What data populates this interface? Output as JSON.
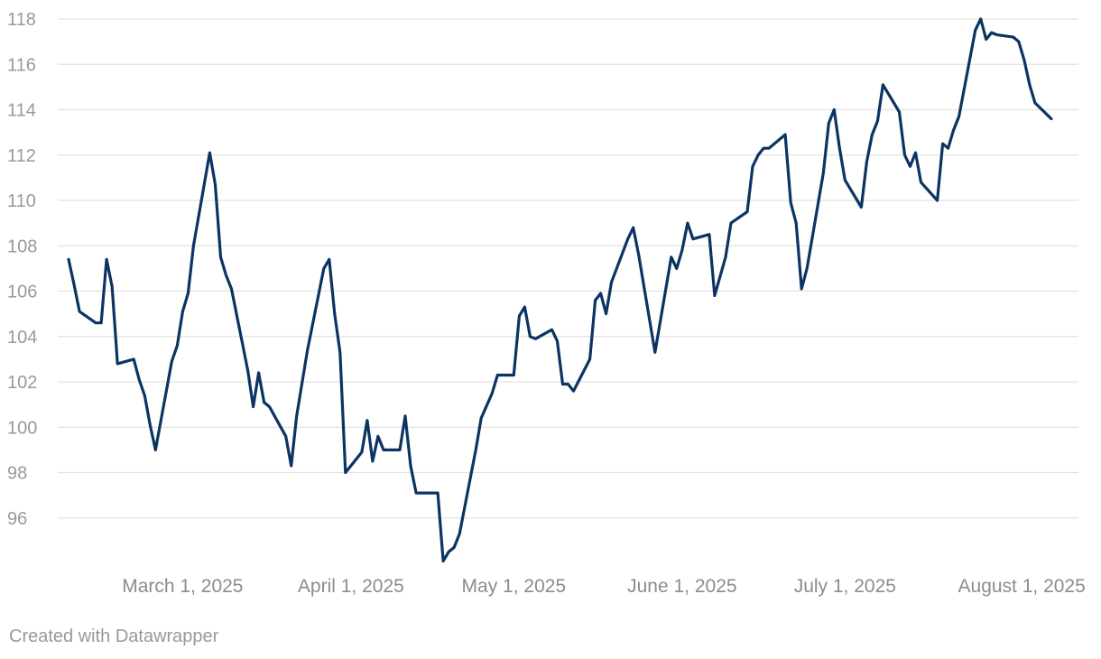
{
  "chart_data": {
    "type": "line",
    "title": "",
    "xlabel": "",
    "ylabel": "",
    "ylim": [
      94,
      118
    ],
    "yticks": [
      96,
      98,
      100,
      102,
      104,
      106,
      108,
      110,
      112,
      114,
      116,
      118
    ],
    "xlim": [
      "2025-02-06",
      "2025-08-13"
    ],
    "xticks": [
      {
        "date": "2025-03-01",
        "label": "March 1, 2025"
      },
      {
        "date": "2025-04-01",
        "label": "April 1, 2025"
      },
      {
        "date": "2025-05-01",
        "label": "May 1, 2025"
      },
      {
        "date": "2025-06-01",
        "label": "June 1, 2025"
      },
      {
        "date": "2025-07-01",
        "label": "July 1, 2025"
      },
      {
        "date": "2025-08-01",
        "label": "August 1, 2025"
      }
    ],
    "grid": true,
    "series": [
      {
        "color": "#0b3463",
        "points": [
          [
            "2025-02-08",
            107.4
          ],
          [
            "2025-02-09",
            106.3
          ],
          [
            "2025-02-10",
            105.1
          ],
          [
            "2025-02-13",
            104.6
          ],
          [
            "2025-02-14",
            104.6
          ],
          [
            "2025-02-15",
            107.4
          ],
          [
            "2025-02-16",
            106.2
          ],
          [
            "2025-02-17",
            102.8
          ],
          [
            "2025-02-20",
            103.0
          ],
          [
            "2025-02-21",
            102.1
          ],
          [
            "2025-02-22",
            101.4
          ],
          [
            "2025-02-23",
            100.1
          ],
          [
            "2025-02-24",
            99.0
          ],
          [
            "2025-02-27",
            102.9
          ],
          [
            "2025-02-28",
            103.6
          ],
          [
            "2025-03-01",
            105.1
          ],
          [
            "2025-03-02",
            105.9
          ],
          [
            "2025-03-03",
            108.0
          ],
          [
            "2025-03-06",
            112.1
          ],
          [
            "2025-03-07",
            110.7
          ],
          [
            "2025-03-08",
            107.5
          ],
          [
            "2025-03-09",
            106.7
          ],
          [
            "2025-03-10",
            106.1
          ],
          [
            "2025-03-13",
            102.5
          ],
          [
            "2025-03-14",
            100.9
          ],
          [
            "2025-03-15",
            102.4
          ],
          [
            "2025-03-16",
            101.1
          ],
          [
            "2025-03-17",
            100.9
          ],
          [
            "2025-03-20",
            99.6
          ],
          [
            "2025-03-21",
            98.3
          ],
          [
            "2025-03-22",
            100.5
          ],
          [
            "2025-03-24",
            103.4
          ],
          [
            "2025-03-27",
            107.0
          ],
          [
            "2025-03-28",
            107.4
          ],
          [
            "2025-03-29",
            105.0
          ],
          [
            "2025-03-30",
            103.3
          ],
          [
            "2025-03-31",
            98.0
          ],
          [
            "2025-04-03",
            98.9
          ],
          [
            "2025-04-04",
            100.3
          ],
          [
            "2025-04-05",
            98.5
          ],
          [
            "2025-04-06",
            99.6
          ],
          [
            "2025-04-07",
            99.0
          ],
          [
            "2025-04-10",
            99.0
          ],
          [
            "2025-04-11",
            100.5
          ],
          [
            "2025-04-12",
            98.3
          ],
          [
            "2025-04-13",
            97.1
          ],
          [
            "2025-04-17",
            97.1
          ],
          [
            "2025-04-18",
            94.1
          ],
          [
            "2025-04-19",
            94.5
          ],
          [
            "2025-04-20",
            94.7
          ],
          [
            "2025-04-21",
            95.3
          ],
          [
            "2025-04-24",
            99.0
          ],
          [
            "2025-04-25",
            100.4
          ],
          [
            "2025-04-27",
            101.5
          ],
          [
            "2025-04-28",
            102.3
          ],
          [
            "2025-05-01",
            102.3
          ],
          [
            "2025-05-02",
            104.9
          ],
          [
            "2025-05-03",
            105.3
          ],
          [
            "2025-05-04",
            104.0
          ],
          [
            "2025-05-05",
            103.9
          ],
          [
            "2025-05-08",
            104.3
          ],
          [
            "2025-05-09",
            103.8
          ],
          [
            "2025-05-10",
            101.9
          ],
          [
            "2025-05-11",
            101.9
          ],
          [
            "2025-05-12",
            101.6
          ],
          [
            "2025-05-15",
            103.0
          ],
          [
            "2025-05-16",
            105.6
          ],
          [
            "2025-05-17",
            105.9
          ],
          [
            "2025-05-18",
            105.0
          ],
          [
            "2025-05-19",
            106.4
          ],
          [
            "2025-05-22",
            108.3
          ],
          [
            "2025-05-23",
            108.8
          ],
          [
            "2025-05-24",
            107.6
          ],
          [
            "2025-05-27",
            103.3
          ],
          [
            "2025-05-30",
            107.5
          ],
          [
            "2025-05-31",
            107.0
          ],
          [
            "2025-06-01",
            107.8
          ],
          [
            "2025-06-02",
            109.0
          ],
          [
            "2025-06-03",
            108.3
          ],
          [
            "2025-06-06",
            108.5
          ],
          [
            "2025-06-07",
            105.8
          ],
          [
            "2025-06-09",
            107.5
          ],
          [
            "2025-06-10",
            109.0
          ],
          [
            "2025-06-13",
            109.5
          ],
          [
            "2025-06-14",
            111.5
          ],
          [
            "2025-06-15",
            112.0
          ],
          [
            "2025-06-16",
            112.3
          ],
          [
            "2025-06-17",
            112.3
          ],
          [
            "2025-06-20",
            112.9
          ],
          [
            "2025-06-21",
            109.9
          ],
          [
            "2025-06-22",
            109.0
          ],
          [
            "2025-06-23",
            106.1
          ],
          [
            "2025-06-24",
            107.0
          ],
          [
            "2025-06-27",
            111.2
          ],
          [
            "2025-06-28",
            113.4
          ],
          [
            "2025-06-29",
            114.0
          ],
          [
            "2025-06-30",
            112.3
          ],
          [
            "2025-07-01",
            110.9
          ],
          [
            "2025-07-04",
            109.7
          ],
          [
            "2025-07-05",
            111.7
          ],
          [
            "2025-07-06",
            112.9
          ],
          [
            "2025-07-07",
            113.5
          ],
          [
            "2025-07-08",
            115.1
          ],
          [
            "2025-07-11",
            113.9
          ],
          [
            "2025-07-12",
            112.0
          ],
          [
            "2025-07-13",
            111.5
          ],
          [
            "2025-07-14",
            112.1
          ],
          [
            "2025-07-15",
            110.8
          ],
          [
            "2025-07-18",
            110.0
          ],
          [
            "2025-07-19",
            112.5
          ],
          [
            "2025-07-20",
            112.3
          ],
          [
            "2025-07-21",
            113.1
          ],
          [
            "2025-07-22",
            113.7
          ],
          [
            "2025-07-25",
            117.5
          ],
          [
            "2025-07-26",
            118.0
          ],
          [
            "2025-07-27",
            117.1
          ],
          [
            "2025-07-28",
            117.4
          ],
          [
            "2025-07-29",
            117.3
          ],
          [
            "2025-08-01",
            117.2
          ],
          [
            "2025-08-02",
            117.0
          ],
          [
            "2025-08-03",
            116.2
          ],
          [
            "2025-08-04",
            115.1
          ],
          [
            "2025-08-05",
            114.3
          ],
          [
            "2025-08-08",
            113.6
          ]
        ]
      }
    ]
  },
  "footer": {
    "credit": "Created with Datawrapper"
  }
}
